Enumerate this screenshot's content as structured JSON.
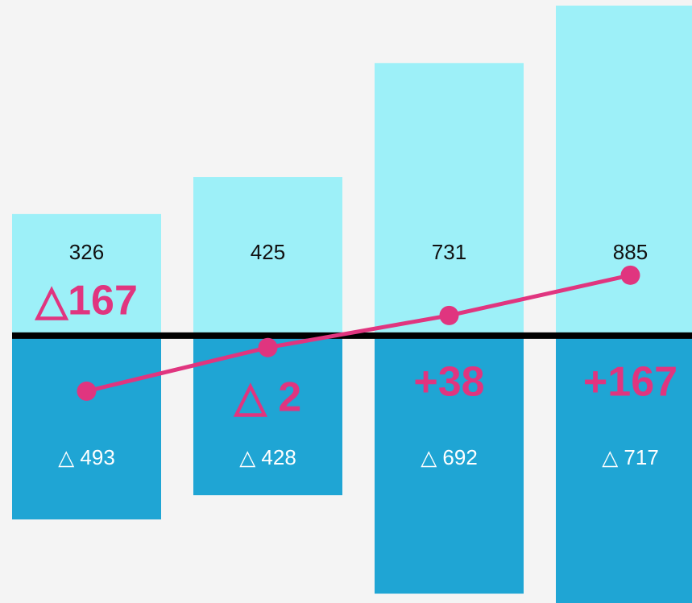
{
  "chart_data": {
    "type": "bar",
    "categories": [
      null,
      null,
      null,
      null
    ],
    "ylim": [
      -717,
      900
    ],
    "y2lim": [
      717,
      -900
    ],
    "series": [
      {
        "color": "#9df0f8",
        "values": [
          326,
          425,
          731,
          885
        ]
      },
      {
        "color": "#1fa5d4",
        "axis": "y2",
        "values": [
          493,
          428,
          692,
          717
        ],
        "value_labels": [
          "△ 493",
          "△ 428",
          "△ 692",
          "△ 717"
        ]
      },
      {
        "type": "line",
        "color": "#e0357f",
        "values": [
          -149,
          -32,
          54,
          162
        ]
      }
    ],
    "annotations": [
      "△167",
      "△ 2",
      "+38",
      "+167"
    ],
    "annotation_color": "#e0357f"
  }
}
